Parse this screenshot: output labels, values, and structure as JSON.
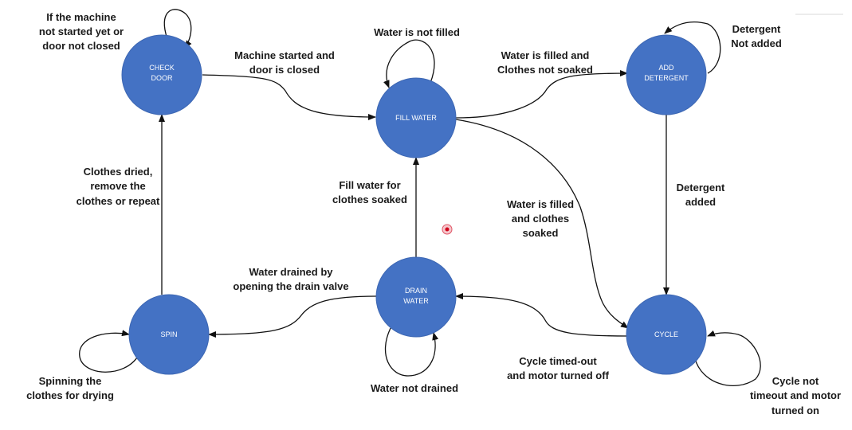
{
  "diagram": {
    "states": {
      "check_door": [
        "CHECK",
        "DOOR"
      ],
      "fill_water": [
        "FILL WATER"
      ],
      "add_detergent": [
        "ADD",
        "DETERGENT"
      ],
      "drain_water": [
        "DRAIN",
        "WATER"
      ],
      "spin": [
        "SPIN"
      ],
      "cycle": [
        "CYCLE"
      ]
    },
    "transitions": {
      "check_door_self": [
        "If the machine",
        "not started yet or",
        "door not closed"
      ],
      "check_to_fill": [
        "Machine started and",
        "door is closed"
      ],
      "fill_self": [
        "Water is not filled"
      ],
      "fill_to_detergent": [
        "Water is filled and",
        "Clothes not soaked"
      ],
      "detergent_self": [
        "Detergent",
        "Not added"
      ],
      "detergent_to_cycle": [
        "Detergent",
        "added"
      ],
      "fill_to_cycle": [
        "Water is filled",
        "and clothes",
        "soaked"
      ],
      "drain_to_fill": [
        "Fill water for",
        "clothes soaked"
      ],
      "spin_to_check": [
        "Clothes dried,",
        "remove the",
        "clothes or repeat"
      ],
      "drain_to_spin": [
        "Water drained by",
        "opening the drain valve"
      ],
      "spin_self": [
        "Spinning the",
        "clothes for drying"
      ],
      "drain_self": [
        "Water not drained"
      ],
      "cycle_to_drain": [
        "Cycle timed-out",
        "and motor turned off"
      ],
      "cycle_self": [
        "Cycle not",
        "timeout and motor",
        "turned on"
      ]
    }
  },
  "colors": {
    "state_fill": "#4472C4",
    "state_text": "#ffffff",
    "arrow": "#111111",
    "cursor": "#d0021b"
  }
}
